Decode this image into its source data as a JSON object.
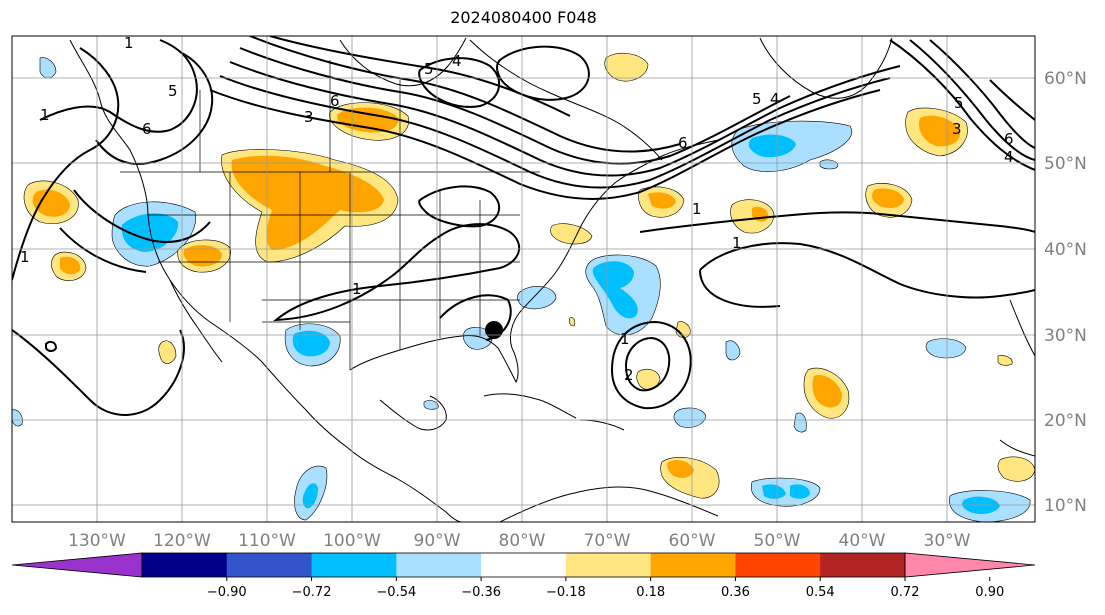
{
  "title": "2024080400 F048",
  "map": {
    "lon_ticks": [
      "130°W",
      "120°W",
      "110°W",
      "100°W",
      "90°W",
      "80°W",
      "70°W",
      "60°W",
      "50°W",
      "40°W",
      "30°W"
    ],
    "lat_ticks": [
      "60°N",
      "50°N",
      "40°N",
      "30°N",
      "20°N",
      "10°N"
    ],
    "contour_labels": [
      "1",
      "5",
      "6",
      "1",
      "3",
      "6",
      "5",
      "4",
      "5",
      "4",
      "6",
      "1",
      "1",
      "1",
      "5",
      "3",
      "6",
      "4",
      "1",
      "2",
      "1"
    ],
    "marker": "storm-center-dot"
  },
  "colorbar": {
    "colors": [
      "#9933cc",
      "#00008b",
      "#3355cc",
      "#00bfff",
      "#aadfff",
      "#ffffff",
      "#ffe680",
      "#ffa500",
      "#ff4500",
      "#b22222",
      "#ff88aa"
    ],
    "labels": [
      "−0.90",
      "−0.72",
      "−0.54",
      "−0.36",
      "−0.18",
      "0.18",
      "0.36",
      "0.54",
      "0.72",
      "0.90"
    ]
  }
}
